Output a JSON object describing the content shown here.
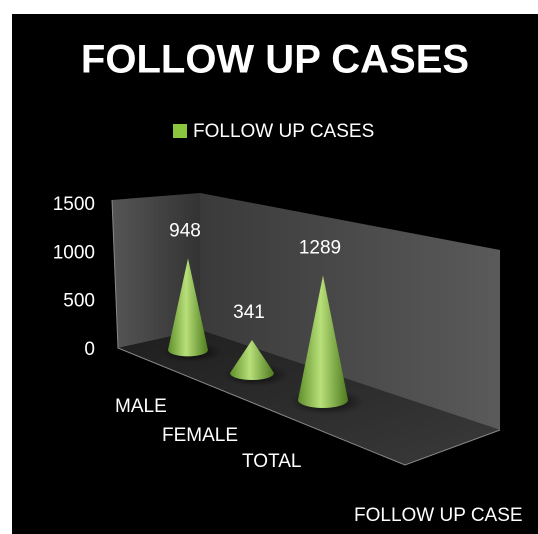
{
  "chart_data": {
    "type": "cone3d",
    "title": "FOLLOW UP CASES",
    "categories": [
      "MALE",
      "FEMALE",
      "TOTAL"
    ],
    "series": [
      {
        "name": "FOLLOW UP CASES",
        "color": "#8cc63f",
        "values": [
          948,
          341,
          1289
        ]
      }
    ],
    "ylim": [
      0,
      1500
    ],
    "yticks": [
      0,
      500,
      1000,
      1500
    ],
    "depth_axis_label": "FOLLOW UP CASE",
    "legend": "top"
  }
}
